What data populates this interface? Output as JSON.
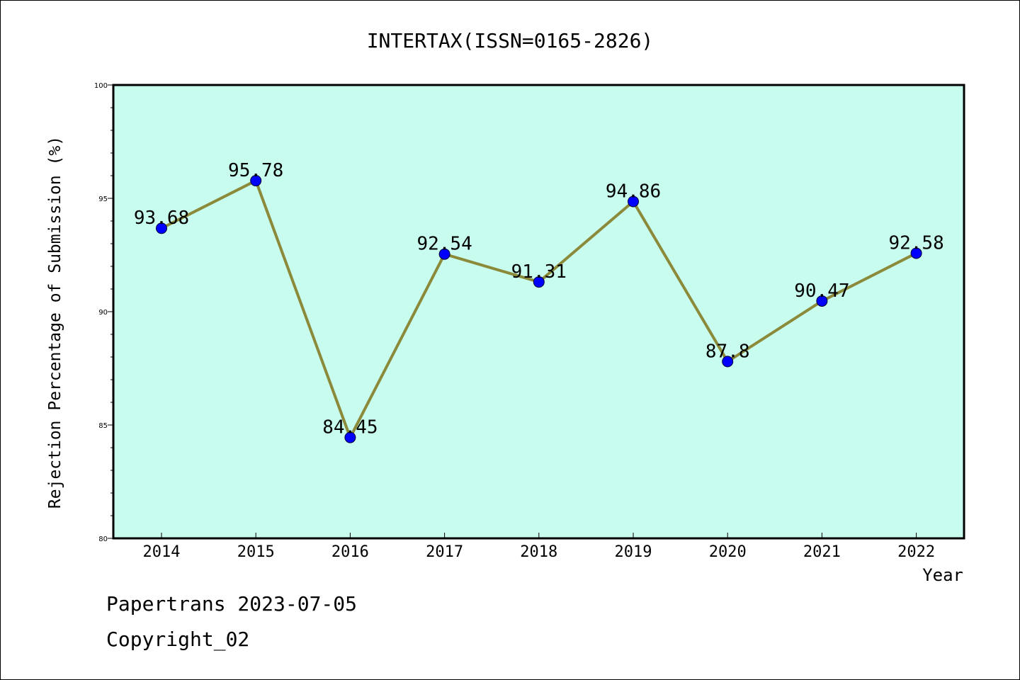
{
  "chart_data": {
    "type": "line",
    "title": "INTERTAX(ISSN=0165-2826)",
    "xlabel": "Year",
    "ylabel": "Rejection Percentage of Submission (%)",
    "categories": [
      "2014",
      "2015",
      "2016",
      "2017",
      "2018",
      "2019",
      "2020",
      "2021",
      "2022"
    ],
    "series": [
      {
        "values": [
          93.68,
          95.78,
          84.45,
          92.54,
          91.31,
          94.86,
          87.8,
          90.47,
          92.58
        ],
        "labels": [
          "93.68",
          "95.78",
          "84.45",
          "92.54",
          "91.31",
          "94.86",
          "87.8",
          "90.47",
          "92.58"
        ]
      }
    ],
    "ylim": [
      80,
      100
    ],
    "yticks": [
      80,
      85,
      90,
      95,
      100
    ],
    "ytick_labels": [
      "80",
      "85",
      "90",
      "95",
      "100"
    ],
    "grid": false,
    "colors": {
      "plot_background": "#c8fcee",
      "line": "#8b8a3a",
      "marker": "#0000ff",
      "axis": "#000000"
    }
  },
  "footer": {
    "line1": "Papertrans 2023-07-05",
    "line2": "Copyright_02"
  }
}
